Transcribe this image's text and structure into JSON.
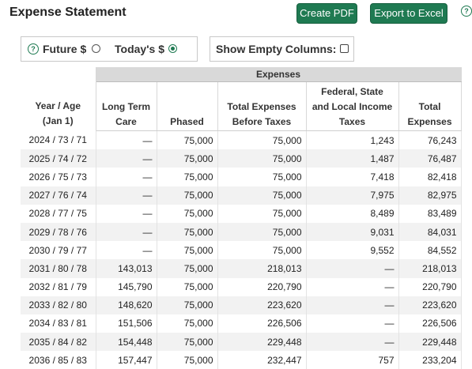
{
  "header": {
    "title": "Expense Statement",
    "create_pdf": "Create PDF",
    "export_excel": "Export to Excel",
    "help_glyph": "?"
  },
  "dollar_toggle": {
    "future_label": "Future $",
    "today_label": "Today's $",
    "selected": "Today's $"
  },
  "empty_columns": {
    "label": "Show Empty Columns:",
    "checked": false
  },
  "table": {
    "group_header": "Expenses",
    "columns": [
      "Year / Age (Jan 1)",
      "Long Term Care",
      "Phased",
      "Total Expenses Before Taxes",
      "Federal, State and Local Income Taxes",
      "Total Expenses"
    ],
    "column_lines": [
      [
        "Year / Age",
        "(Jan 1)"
      ],
      [
        "Long Term",
        "Care"
      ],
      [
        "Phased"
      ],
      [
        "Total Expenses",
        "Before Taxes"
      ],
      [
        "Federal, State",
        "and Local Income",
        "Taxes"
      ],
      [
        "Total",
        "Expenses"
      ]
    ],
    "rows": [
      [
        "2024 / 73 / 71",
        "—",
        "75,000",
        "75,000",
        "1,243",
        "76,243"
      ],
      [
        "2025 / 74 / 72",
        "—",
        "75,000",
        "75,000",
        "1,487",
        "76,487"
      ],
      [
        "2026 / 75 / 73",
        "—",
        "75,000",
        "75,000",
        "7,418",
        "82,418"
      ],
      [
        "2027 / 76 / 74",
        "—",
        "75,000",
        "75,000",
        "7,975",
        "82,975"
      ],
      [
        "2028 / 77 / 75",
        "—",
        "75,000",
        "75,000",
        "8,489",
        "83,489"
      ],
      [
        "2029 / 78 / 76",
        "—",
        "75,000",
        "75,000",
        "9,031",
        "84,031"
      ],
      [
        "2030 / 79 / 77",
        "—",
        "75,000",
        "75,000",
        "9,552",
        "84,552"
      ],
      [
        "2031 / 80 / 78",
        "143,013",
        "75,000",
        "218,013",
        "—",
        "218,013"
      ],
      [
        "2032 / 81 / 79",
        "145,790",
        "75,000",
        "220,790",
        "—",
        "220,790"
      ],
      [
        "2033 / 82 / 80",
        "148,620",
        "75,000",
        "223,620",
        "—",
        "223,620"
      ],
      [
        "2034 / 83 / 81",
        "151,506",
        "75,000",
        "226,506",
        "—",
        "226,506"
      ],
      [
        "2035 / 84 / 82",
        "154,448",
        "75,000",
        "229,448",
        "—",
        "229,448"
      ],
      [
        "2036 / 85 / 83",
        "157,447",
        "75,000",
        "232,447",
        "757",
        "233,204"
      ]
    ]
  },
  "colors": {
    "accent": "#1f7a52",
    "group_header_bg": "#d9d9d9",
    "stripe": "#f2f2f2"
  }
}
